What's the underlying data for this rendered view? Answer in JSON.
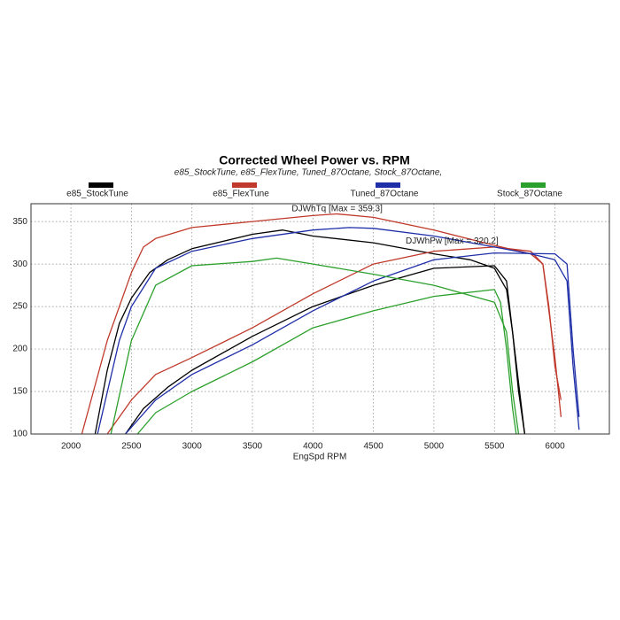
{
  "chart_data": {
    "type": "line",
    "title": "Corrected Wheel Power vs. RPM",
    "subtitle": "e85_StockTune, e85_FlexTune, Tuned_87Octane, Stock_87Octane,",
    "x_label": "EngSpd RPM",
    "xlim": [
      1670,
      6450
    ],
    "ylim": [
      100,
      371
    ],
    "xticks": [
      2000,
      2500,
      3000,
      3500,
      4000,
      4500,
      5000,
      5500,
      6000
    ],
    "yticks": [
      100,
      150,
      200,
      250,
      300,
      350
    ],
    "grid": true,
    "annotations": [
      {
        "text": "DJWhTq [Max = 359.3]",
        "color": "#c0392b",
        "x": 4200,
        "y": 365
      },
      {
        "text": "DJWhPw [Max = 320.2]",
        "color": "#c0392b",
        "x": 5150,
        "y": 327
      }
    ],
    "series": [
      {
        "name": "e85_StockTune",
        "color": "#000000",
        "torque": {
          "x": [
            2200,
            2300,
            2400,
            2500,
            2650,
            2800,
            3000,
            3500,
            3750,
            4000,
            4500,
            5000,
            5300,
            5500,
            5600,
            5650,
            5700,
            5750
          ],
          "values": [
            100,
            175,
            230,
            260,
            290,
            305,
            318,
            335,
            340,
            333,
            325,
            312,
            305,
            295,
            270,
            220,
            160,
            100
          ]
        },
        "power": {
          "x": [
            2450,
            2600,
            2800,
            3000,
            3500,
            4000,
            4500,
            5000,
            5500,
            5600,
            5650,
            5700,
            5750
          ],
          "values": [
            100,
            130,
            155,
            175,
            215,
            250,
            275,
            295,
            298,
            280,
            220,
            150,
            100
          ]
        }
      },
      {
        "name": "e85_FlexTune",
        "color": "#c0392b",
        "torque": {
          "x": [
            2090,
            2300,
            2500,
            2600,
            2700,
            3000,
            3500,
            4000,
            4200,
            4500,
            5000,
            5500,
            5800,
            5900,
            5950,
            6000,
            6050
          ],
          "values": [
            100,
            210,
            290,
            320,
            330,
            343,
            350,
            357,
            359,
            355,
            340,
            322,
            312,
            300,
            250,
            180,
            140
          ]
        },
        "power": {
          "x": [
            2300,
            2500,
            2700,
            3000,
            3500,
            4000,
            4500,
            5000,
            5500,
            5800,
            5900,
            6000,
            6050
          ],
          "values": [
            100,
            140,
            170,
            190,
            225,
            265,
            300,
            315,
            320,
            315,
            300,
            190,
            120
          ]
        }
      },
      {
        "name": "Tuned_87Octane",
        "color": "#1f2fa8",
        "torque": {
          "x": [
            2220,
            2400,
            2500,
            2700,
            3000,
            3500,
            4000,
            4300,
            4500,
            5000,
            5500,
            5800,
            6000,
            6100,
            6150,
            6200
          ],
          "values": [
            100,
            210,
            250,
            295,
            315,
            330,
            340,
            343,
            342,
            333,
            320,
            312,
            305,
            280,
            180,
            105
          ]
        },
        "power": {
          "x": [
            2450,
            2700,
            3000,
            3500,
            4000,
            4500,
            5000,
            5500,
            6000,
            6100,
            6150,
            6200
          ],
          "values": [
            100,
            140,
            170,
            205,
            245,
            280,
            305,
            313,
            312,
            300,
            200,
            120
          ]
        }
      },
      {
        "name": "Stock_87Octane",
        "color": "#2ca02c",
        "torque": {
          "x": [
            2330,
            2500,
            2700,
            3000,
            3500,
            3700,
            4000,
            4500,
            5000,
            5500,
            5600,
            5650,
            5700
          ],
          "values": [
            100,
            210,
            275,
            298,
            303,
            307,
            300,
            288,
            275,
            255,
            220,
            150,
            100
          ]
        },
        "power": {
          "x": [
            2550,
            2700,
            3000,
            3500,
            4000,
            4500,
            5000,
            5500,
            5550,
            5600,
            5650,
            5680
          ],
          "values": [
            100,
            125,
            150,
            185,
            225,
            245,
            262,
            270,
            255,
            200,
            130,
            100
          ]
        }
      }
    ]
  }
}
